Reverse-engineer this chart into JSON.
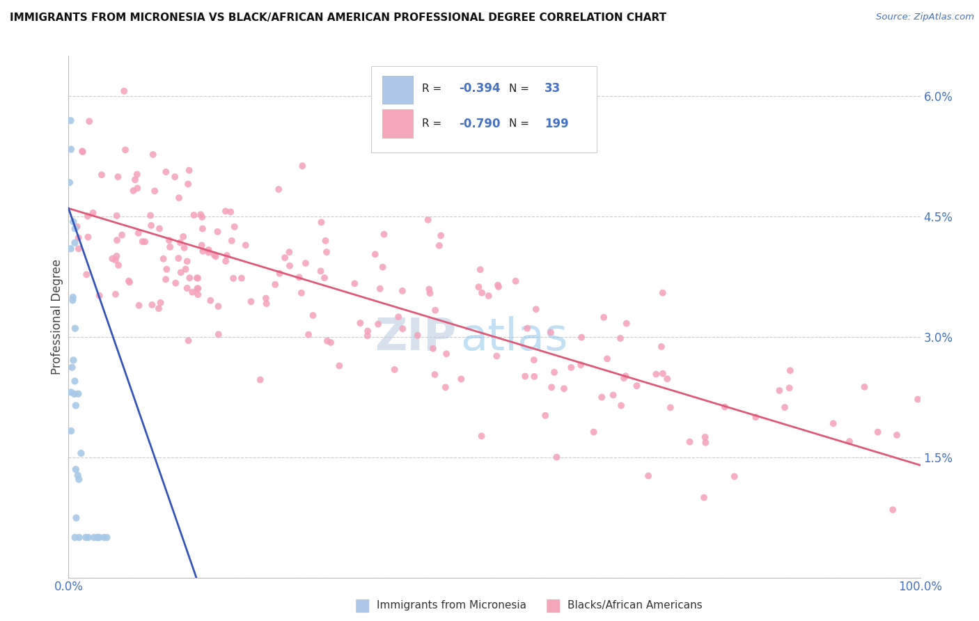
{
  "title": "IMMIGRANTS FROM MICRONESIA VS BLACK/AFRICAN AMERICAN PROFESSIONAL DEGREE CORRELATION CHART",
  "source_text": "Source: ZipAtlas.com",
  "ylabel": "Professional Degree",
  "xlim": [
    0,
    1.0
  ],
  "ylim": [
    0,
    0.065
  ],
  "yticks": [
    0.0,
    0.015,
    0.03,
    0.045,
    0.06
  ],
  "ytick_labels": [
    "",
    "1.5%",
    "3.0%",
    "4.5%",
    "6.0%"
  ],
  "xtick_labels": [
    "0.0%",
    "100.0%"
  ],
  "footer_label_blue": "Immigrants from Micronesia",
  "footer_label_pink": "Blacks/African Americans",
  "blue_color": "#a8c8e8",
  "pink_color": "#f4a0b8",
  "blue_line_color": "#3355bb",
  "pink_line_color": "#e05878",
  "legend_box_color": "#aec6e8",
  "legend_pink_color": "#f4a7b9",
  "watermark_dark": "ZIP",
  "watermark_light": "atlas",
  "R_blue": -0.394,
  "N_blue": 33,
  "R_pink": -0.79,
  "N_pink": 199,
  "blue_trend_x": [
    0.0,
    0.15
  ],
  "blue_trend_y": [
    0.046,
    0.0
  ],
  "pink_trend_x": [
    0.0,
    1.0
  ],
  "pink_trend_y": [
    0.046,
    0.014
  ]
}
